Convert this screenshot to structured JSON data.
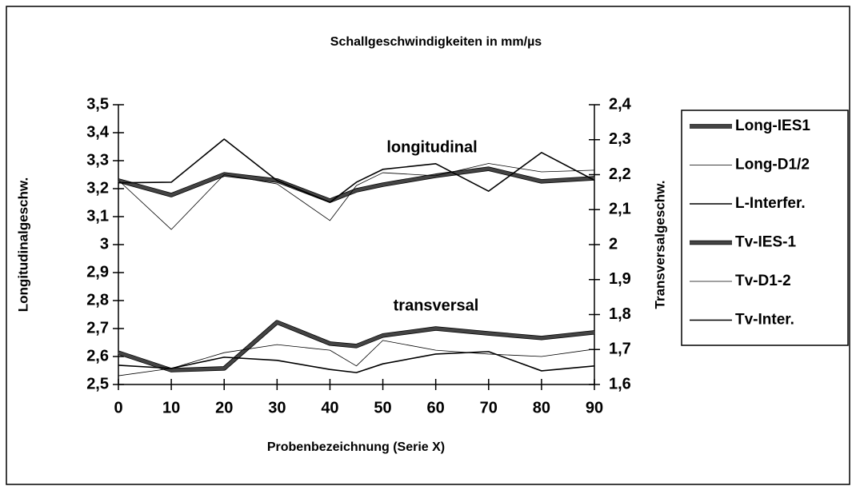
{
  "chart_data": {
    "type": "line",
    "title": "Schallgeschwindigkeiten in mm/µs",
    "x_label": "Probenbezeichnung (Serie X)",
    "y_label": "Longitudinalgeschw.",
    "y2_label": "Transversalgeschw.",
    "annotations": [
      "longitudinal",
      "transversal"
    ],
    "x": [
      0,
      10,
      20,
      30,
      40,
      45,
      50,
      60,
      70,
      80,
      90
    ],
    "xlim": [
      0,
      90
    ],
    "xticks": [
      0,
      10,
      20,
      30,
      40,
      50,
      60,
      70,
      80,
      90
    ],
    "ylim": [
      2.5,
      3.5
    ],
    "yticks": [
      {
        "value": 2.5,
        "label": "2,5"
      },
      {
        "value": 2.6,
        "label": "2,6"
      },
      {
        "value": 2.7,
        "label": "2,7"
      },
      {
        "value": 2.8,
        "label": "2,8"
      },
      {
        "value": 2.9,
        "label": "2,9"
      },
      3,
      {
        "value": 3.1,
        "label": "3,1"
      },
      {
        "value": 3.2,
        "label": "3,2"
      },
      {
        "value": 3.3,
        "label": "3,3"
      },
      {
        "value": 3.4,
        "label": "3,4"
      },
      {
        "value": 3.5,
        "label": "3,5"
      }
    ],
    "y2lim": [
      1.6,
      2.4
    ],
    "y2ticks": [
      {
        "value": 1.6,
        "label": "1,6"
      },
      {
        "value": 1.7,
        "label": "1,7"
      },
      {
        "value": 1.8,
        "label": "1,8"
      },
      {
        "value": 1.9,
        "label": "1,9"
      },
      2,
      {
        "value": 2.1,
        "label": "2,1"
      },
      {
        "value": 2.2,
        "label": "2,2"
      },
      {
        "value": 2.3,
        "label": "2,3"
      },
      {
        "value": 2.4,
        "label": "2,4"
      }
    ],
    "grid": false,
    "legend": "right",
    "series": [
      {
        "name": "Long-IES1",
        "color": "#444444",
        "line_width": 4,
        "values": [
          3.229,
          3.177,
          3.251,
          3.229,
          3.157,
          3.194,
          3.214,
          3.246,
          3.271,
          3.226,
          3.237
        ]
      },
      {
        "name": "Long-D1/2",
        "color": "#000000",
        "line_width": 0.8,
        "values": [
          3.23,
          3.054,
          3.25,
          3.217,
          3.086,
          3.211,
          3.257,
          3.246,
          3.29,
          3.26,
          3.266
        ]
      },
      {
        "name": "L-Interfer.",
        "color": "#000000",
        "line_width": 1.6,
        "values": [
          3.221,
          3.223,
          3.377,
          3.229,
          3.151,
          3.223,
          3.269,
          3.289,
          3.191,
          3.329,
          3.23
        ]
      },
      {
        "name": "Tv-IES-1",
        "color": "#444444",
        "line_width": 4,
        "axis": "y2",
        "values": [
          1.691,
          1.641,
          1.646,
          1.778,
          1.717,
          1.71,
          1.74,
          1.76,
          1.746,
          1.733,
          1.749
        ]
      },
      {
        "name": "Tv-D1-2",
        "color": "#000000",
        "line_width": 0.8,
        "axis": "y2",
        "values": [
          1.625,
          1.646,
          1.691,
          1.714,
          1.698,
          1.653,
          1.726,
          1.698,
          1.687,
          1.68,
          1.701
        ]
      },
      {
        "name": "Tv-Inter.",
        "color": "#000000",
        "line_width": 1.6,
        "axis": "y2",
        "values": [
          1.655,
          1.646,
          1.678,
          1.669,
          1.643,
          1.634,
          1.659,
          1.687,
          1.694,
          1.639,
          1.653
        ]
      }
    ]
  }
}
